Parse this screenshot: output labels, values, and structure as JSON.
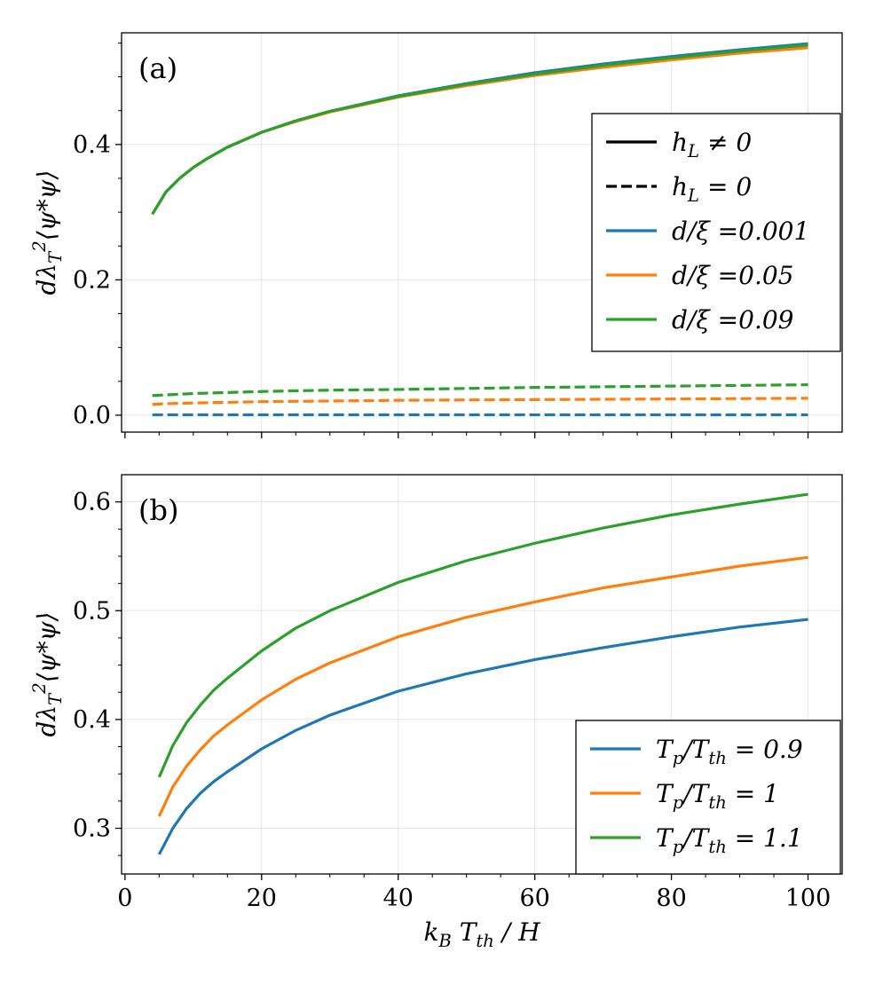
{
  "chart_data": [
    {
      "id": "panel-a",
      "type": "line",
      "panel_label": "(a)",
      "ylabel": "dλ_T^2⟨ψ*ψ⟩",
      "xlabel": "",
      "xlim": [
        -0.5,
        105
      ],
      "ylim": [
        -0.025,
        0.565
      ],
      "xticks": [
        0,
        20,
        40,
        60,
        80,
        100
      ],
      "yticks": [
        0.0,
        0.2,
        0.4
      ],
      "ytick_labels": [
        "0.0",
        "0.2",
        "0.4"
      ],
      "grid": true,
      "legend_position": "right",
      "legend": [
        {
          "label": "h_L ≠ 0",
          "color": "#000000",
          "style": "solid"
        },
        {
          "label": "h_L = 0",
          "color": "#000000",
          "style": "dashed"
        },
        {
          "label": "d/ξ =0.001",
          "color": "#1f77b4",
          "style": "solid"
        },
        {
          "label": "d/ξ =0.05",
          "color": "#ff7f0e",
          "style": "solid"
        },
        {
          "label": "d/ξ =0.09",
          "color": "#2ca02c",
          "style": "solid"
        }
      ],
      "series": [
        {
          "name": "d/ξ =0.001, h_L ≠ 0",
          "color": "#1f77b4",
          "style": "solid",
          "x": [
            4,
            6,
            8,
            10,
            12,
            15,
            20,
            25,
            30,
            40,
            50,
            60,
            70,
            80,
            90,
            100
          ],
          "values": [
            0.297,
            0.33,
            0.35,
            0.366,
            0.379,
            0.396,
            0.418,
            0.435,
            0.449,
            0.472,
            0.49,
            0.506,
            0.519,
            0.53,
            0.54,
            0.549
          ]
        },
        {
          "name": "d/ξ =0.05, h_L ≠ 0",
          "color": "#ff7f0e",
          "style": "solid",
          "x": [
            4,
            6,
            8,
            10,
            12,
            15,
            20,
            25,
            30,
            40,
            50,
            60,
            70,
            80,
            90,
            100
          ],
          "values": [
            0.297,
            0.33,
            0.35,
            0.366,
            0.379,
            0.396,
            0.418,
            0.434,
            0.448,
            0.47,
            0.487,
            0.502,
            0.514,
            0.525,
            0.535,
            0.543
          ]
        },
        {
          "name": "d/ξ =0.09, h_L ≠ 0",
          "color": "#2ca02c",
          "style": "solid",
          "x": [
            4,
            6,
            8,
            10,
            12,
            15,
            20,
            25,
            30,
            40,
            50,
            60,
            70,
            80,
            90,
            100
          ],
          "values": [
            0.297,
            0.33,
            0.35,
            0.366,
            0.379,
            0.396,
            0.418,
            0.435,
            0.449,
            0.471,
            0.489,
            0.504,
            0.517,
            0.528,
            0.538,
            0.547
          ]
        },
        {
          "name": "d/ξ =0.001, h_L = 0",
          "color": "#1f77b4",
          "style": "dashed",
          "x": [
            4,
            10,
            20,
            40,
            60,
            80,
            100
          ],
          "values": [
            0.0005,
            0.0005,
            0.0005,
            0.0005,
            0.0005,
            0.0005,
            0.0005
          ]
        },
        {
          "name": "d/ξ =0.05, h_L = 0",
          "color": "#ff7f0e",
          "style": "dashed",
          "x": [
            4,
            6,
            10,
            20,
            30,
            40,
            60,
            80,
            100
          ],
          "values": [
            0.016,
            0.017,
            0.018,
            0.02,
            0.021,
            0.022,
            0.023,
            0.024,
            0.025
          ]
        },
        {
          "name": "d/ξ =0.09, h_L = 0",
          "color": "#2ca02c",
          "style": "dashed",
          "x": [
            4,
            6,
            10,
            20,
            30,
            40,
            60,
            80,
            100
          ],
          "values": [
            0.029,
            0.03,
            0.032,
            0.035,
            0.037,
            0.038,
            0.041,
            0.043,
            0.045
          ]
        }
      ]
    },
    {
      "id": "panel-b",
      "type": "line",
      "panel_label": "(b)",
      "ylabel": "dλ_T^2⟨ψ*ψ⟩",
      "xlabel": "k_B T_th / H",
      "xlim": [
        -0.5,
        105
      ],
      "ylim": [
        0.258,
        0.625
      ],
      "xticks": [
        0,
        20,
        40,
        60,
        80,
        100
      ],
      "xtick_labels": [
        "0",
        "20",
        "40",
        "60",
        "80",
        "100"
      ],
      "yticks": [
        0.3,
        0.4,
        0.5,
        0.6
      ],
      "ytick_labels": [
        "0.3",
        "0.4",
        "0.5",
        "0.6"
      ],
      "grid": true,
      "legend_position": "lower-right",
      "legend": [
        {
          "label": "T_p/T_th = 0.9",
          "color": "#1f77b4",
          "style": "solid"
        },
        {
          "label": "T_p/T_th = 1",
          "color": "#ff7f0e",
          "style": "solid"
        },
        {
          "label": "T_p/T_th = 1.1",
          "color": "#2ca02c",
          "style": "solid"
        }
      ],
      "series": [
        {
          "name": "T_p/T_th = 0.9",
          "color": "#1f77b4",
          "style": "solid",
          "x": [
            5,
            7,
            9,
            11,
            13,
            15,
            20,
            25,
            30,
            40,
            50,
            60,
            70,
            80,
            90,
            100
          ],
          "values": [
            0.276,
            0.3,
            0.318,
            0.332,
            0.343,
            0.352,
            0.373,
            0.39,
            0.404,
            0.426,
            0.442,
            0.455,
            0.466,
            0.476,
            0.485,
            0.492
          ]
        },
        {
          "name": "T_p/T_th = 1",
          "color": "#ff7f0e",
          "style": "solid",
          "x": [
            5,
            7,
            9,
            11,
            13,
            15,
            20,
            25,
            30,
            40,
            50,
            60,
            70,
            80,
            90,
            100
          ],
          "values": [
            0.311,
            0.338,
            0.357,
            0.372,
            0.385,
            0.395,
            0.418,
            0.437,
            0.452,
            0.476,
            0.494,
            0.508,
            0.521,
            0.531,
            0.541,
            0.549
          ]
        },
        {
          "name": "T_p/T_th = 1.1",
          "color": "#2ca02c",
          "style": "solid",
          "x": [
            5,
            7,
            9,
            11,
            13,
            15,
            20,
            25,
            30,
            40,
            50,
            60,
            70,
            80,
            90,
            100
          ],
          "values": [
            0.347,
            0.376,
            0.397,
            0.413,
            0.427,
            0.438,
            0.463,
            0.484,
            0.5,
            0.526,
            0.546,
            0.562,
            0.576,
            0.588,
            0.598,
            0.607
          ]
        }
      ]
    }
  ]
}
